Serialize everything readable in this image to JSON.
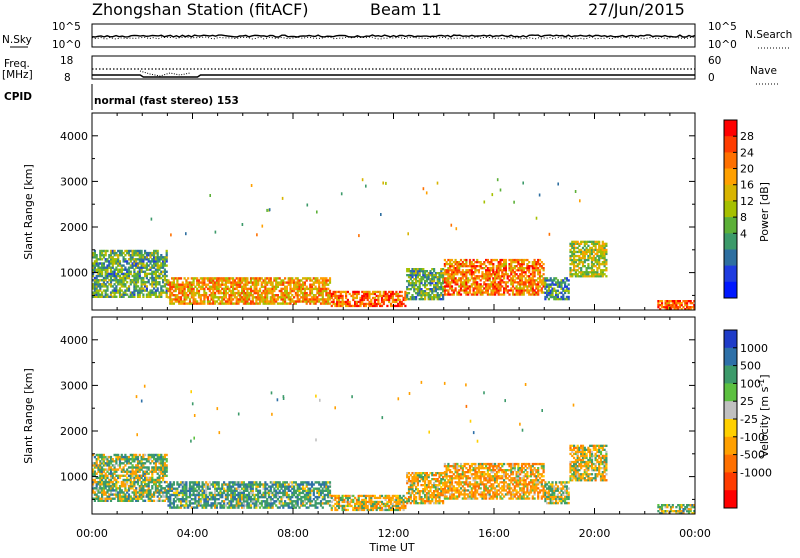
{
  "header": {
    "title": "Zhongshan Station (fitACF)",
    "beam": "Beam 11",
    "date": "27/Jun/2015"
  },
  "top_panels": {
    "nsky_label": "N.Sky",
    "nsky_tick_top": "10^5",
    "nsky_tick_bottom": "10^0",
    "nsearch_label": "N.Search",
    "nsearch_tick_top": "10^5",
    "nsearch_tick_bottom": "10^0",
    "freq_label_1": "Freq.",
    "freq_label_2": "[MHz]",
    "freq_tick_top": "18",
    "freq_tick_bottom": "8",
    "nave_label": "Nave",
    "nave_tick_top": "60",
    "nave_tick_bottom": "0",
    "cpid_label": "CPID",
    "cpid_text": "normal (fast stereo) 153"
  },
  "axes": {
    "ylabel": "Slant Range [km]",
    "xlabel": "Time UT",
    "yticks": [
      "4000",
      "3000",
      "2000",
      "1000"
    ],
    "xticks": [
      "00:00",
      "04:00",
      "08:00",
      "12:00",
      "16:00",
      "20:00",
      "00:00"
    ]
  },
  "power_colorbar": {
    "label": "Power [dB]",
    "ticks": [
      "28",
      "24",
      "20",
      "16",
      "12",
      "8",
      "4"
    ],
    "colors": [
      "#ff0000",
      "#ff3c00",
      "#ff7000",
      "#ffa000",
      "#d8b400",
      "#a6c000",
      "#5cb038",
      "#3c9a6a",
      "#2e6fa0",
      "#1f3ce0",
      "#0018ff"
    ]
  },
  "velocity_colorbar": {
    "label": "Velocity [m s^-1]",
    "ticks": [
      "1000",
      "500",
      "100",
      "25",
      "-25",
      "-100",
      "-500",
      "-1000"
    ],
    "colors": [
      "#1f3cc8",
      "#2e70a8",
      "#3c9a6a",
      "#5cc040",
      "#c0c0c0",
      "#ffd000",
      "#ffa000",
      "#ff7000",
      "#ff3c00",
      "#ff0000"
    ]
  },
  "chart_data": [
    {
      "type": "heatmap",
      "title": "Power [dB]",
      "xlabel": "Time UT",
      "ylabel": "Slant Range [km]",
      "x_range": [
        "00:00",
        "24:00"
      ],
      "ylim": [
        180,
        4500
      ],
      "regions": [
        {
          "t_start": 0.0,
          "t_end": 3.0,
          "r_start": 450,
          "r_end": 1500,
          "value": 12
        },
        {
          "t_start": 3.0,
          "t_end": 9.5,
          "r_start": 300,
          "r_end": 900,
          "value": 22
        },
        {
          "t_start": 9.5,
          "t_end": 12.5,
          "r_start": 250,
          "r_end": 600,
          "value": 26
        },
        {
          "t_start": 12.5,
          "t_end": 14.0,
          "r_start": 400,
          "r_end": 1100,
          "value": 12
        },
        {
          "t_start": 14.0,
          "t_end": 18.0,
          "r_start": 500,
          "r_end": 1300,
          "value": 24
        },
        {
          "t_start": 18.0,
          "t_end": 19.0,
          "r_start": 400,
          "r_end": 900,
          "value": 10
        },
        {
          "t_start": 19.0,
          "t_end": 20.5,
          "r_start": 900,
          "r_end": 1700,
          "value": 16
        },
        {
          "t_start": 22.5,
          "t_end": 24.0,
          "r_start": 180,
          "r_end": 400,
          "value": 26
        }
      ]
    },
    {
      "type": "heatmap",
      "title": "Velocity [m s^-1]",
      "xlabel": "Time UT",
      "ylabel": "Slant Range [km]",
      "x_range": [
        "00:00",
        "24:00"
      ],
      "ylim": [
        180,
        4500
      ],
      "regions": [
        {
          "t_start": 0.0,
          "t_end": 3.0,
          "r_start": 450,
          "r_end": 1500,
          "value": 100
        },
        {
          "t_start": 3.0,
          "t_end": 9.5,
          "r_start": 300,
          "r_end": 900,
          "value": 300
        },
        {
          "t_start": 9.5,
          "t_end": 12.5,
          "r_start": 250,
          "r_end": 600,
          "value": -150
        },
        {
          "t_start": 12.5,
          "t_end": 14.0,
          "r_start": 400,
          "r_end": 1100,
          "value": -200
        },
        {
          "t_start": 14.0,
          "t_end": 18.0,
          "r_start": 500,
          "r_end": 1300,
          "value": -300
        },
        {
          "t_start": 18.0,
          "t_end": 19.0,
          "r_start": 400,
          "r_end": 900,
          "value": 50
        },
        {
          "t_start": 19.0,
          "t_end": 20.5,
          "r_start": 900,
          "r_end": 1700,
          "value": -100
        },
        {
          "t_start": 22.5,
          "t_end": 24.0,
          "r_start": 180,
          "r_end": 400,
          "value": 80
        }
      ]
    }
  ]
}
